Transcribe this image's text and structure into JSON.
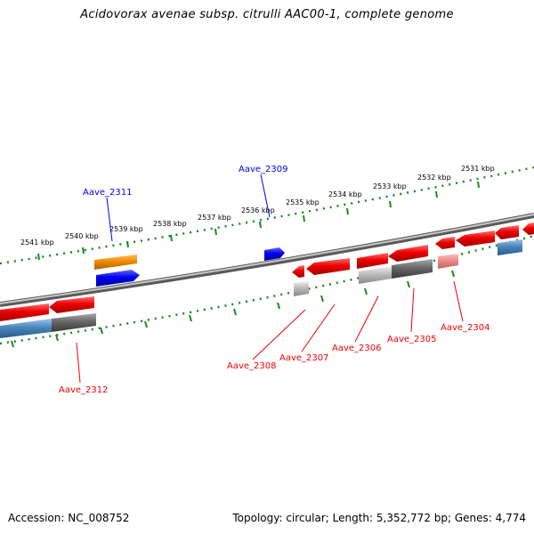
{
  "title": "Acidovorax avenae subsp. citrulli AAC00-1, complete genome",
  "footer": {
    "accession": "Accession: NC_008752",
    "summary": "Topology: circular; Length: 5,352,772 bp; Genes: 4,774"
  },
  "scale_labels": [
    "2531 kbp",
    "2532 kbp",
    "2533 kbp",
    "2534 kbp",
    "2535 kbp",
    "2536 kbp",
    "2537 kbp",
    "2538 kbp",
    "2539 kbp",
    "2540 kbp",
    "2541 kbp"
  ],
  "gene_labels": {
    "top": [
      "Aave_2311",
      "Aave_2309"
    ],
    "bottom": [
      "Aave_2312",
      "Aave_2308",
      "Aave_2307",
      "Aave_2306",
      "Aave_2305",
      "Aave_2304"
    ]
  },
  "colors": {
    "forward_strand": "#0000ee",
    "reverse_strand": "#ee0000",
    "orange_feature": "#f08a00",
    "backbone": "#888888",
    "ticks": "#1a8a1a",
    "gray_feature": "#666666",
    "light_gray_feature": "#bbbbbb",
    "steel_blue_feature": "#4a86bb",
    "pink_feature": "#f08a8a"
  }
}
